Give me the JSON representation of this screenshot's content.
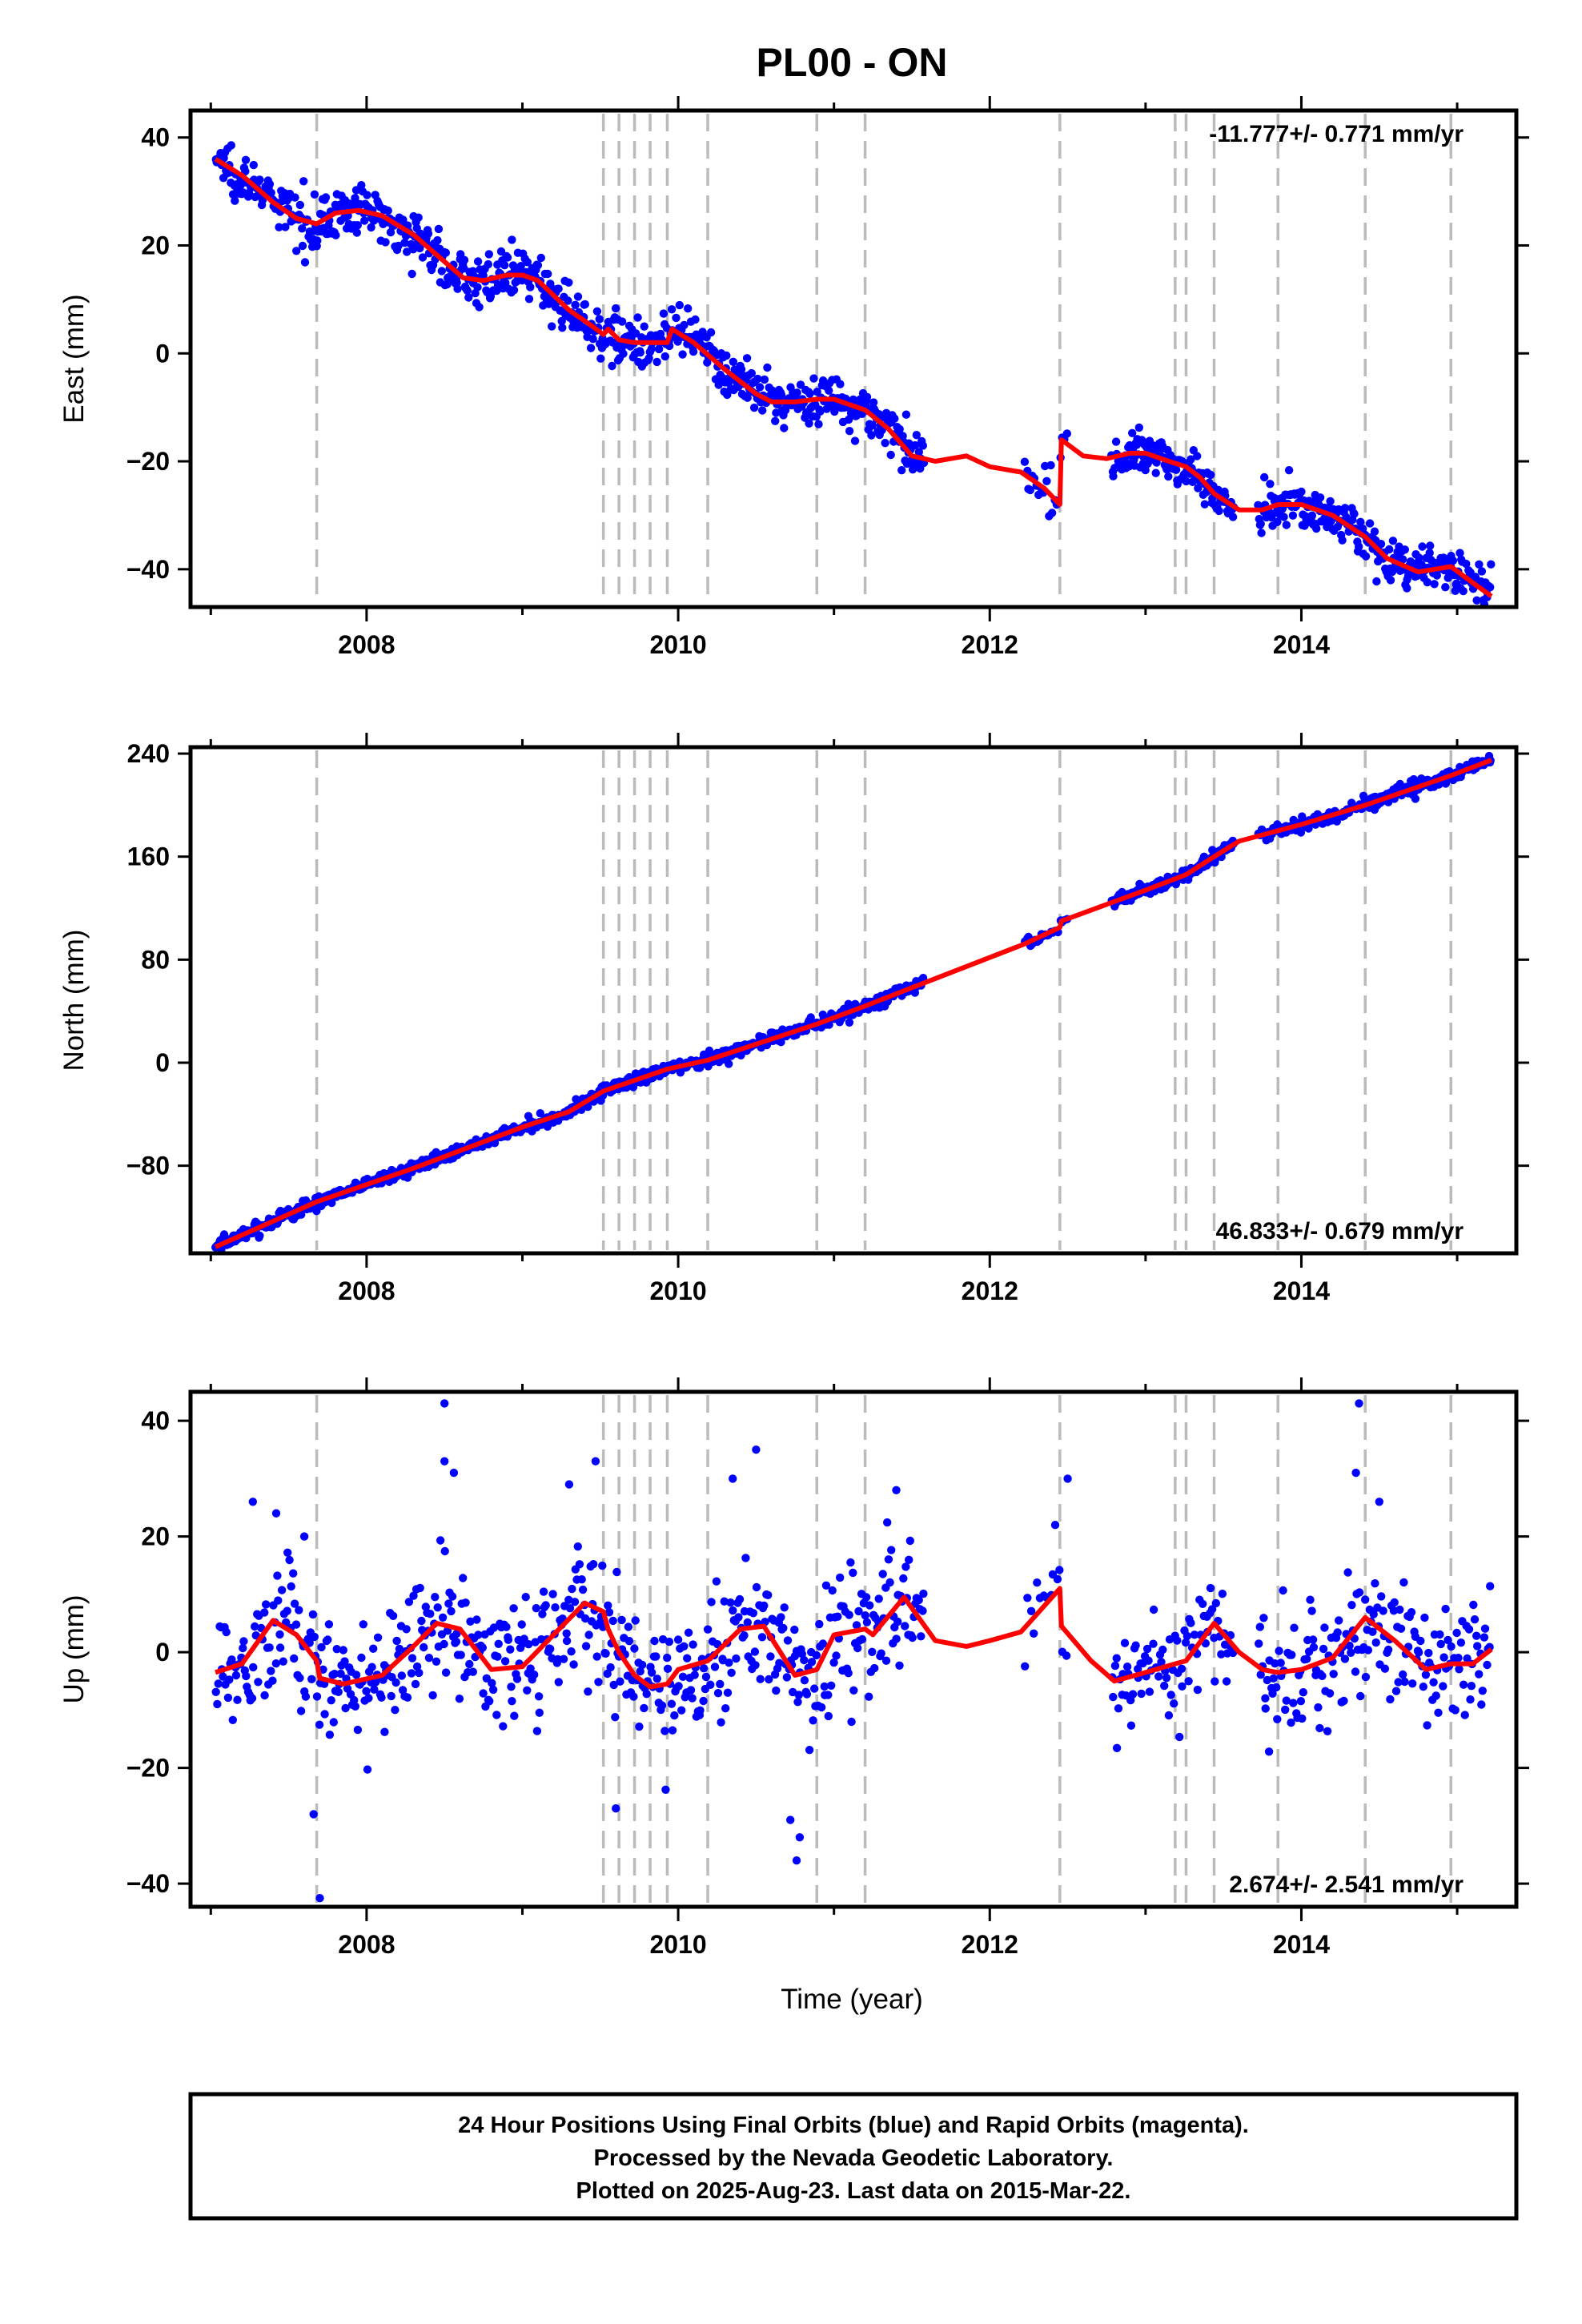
{
  "title": "PL00 - ON",
  "x_axis_label": "Time (year)",
  "x_ticks": [
    "2008",
    "2010",
    "2012",
    "2014"
  ],
  "footer": {
    "line1": "24 Hour Positions Using Final Orbits (blue) and Rapid Orbits (magenta).",
    "line2": "Processed by the Nevada Geodetic Laboratory.",
    "line3": "Plotted on 2025-Aug-23. Last data on 2015-Mar-22."
  },
  "colors": {
    "final_orbits": "#0000ff",
    "model_fit": "#ff0000",
    "event_lines": "#bbbbbb",
    "frame": "#000000"
  },
  "chart_data": [
    {
      "type": "scatter",
      "panel": "east",
      "ylabel": "East (mm)",
      "xlim": [
        2006.87,
        2015.38
      ],
      "ylim": [
        -47,
        45
      ],
      "y_ticks": [
        "40",
        "20",
        "0",
        "−20",
        "−40"
      ],
      "y_tick_values": [
        40,
        20,
        0,
        -20,
        -40
      ],
      "x_tick_values": [
        2008,
        2010,
        2012,
        2014
      ],
      "rate_label": "-11.777+/- 0.771 mm/yr",
      "rate_position": "top-right",
      "grid": false,
      "event_lines": [
        2007.68,
        2009.52,
        2009.62,
        2009.72,
        2009.82,
        2009.93,
        2010.19,
        2010.89,
        2011.2,
        2012.45,
        2013.19,
        2013.26,
        2013.44,
        2013.85,
        2014.41,
        2014.96
      ],
      "segments": [
        {
          "x0": 2007.03,
          "x1": 2011.58,
          "density": 170,
          "noise": 2.2
        },
        {
          "x0": 2012.22,
          "x1": 2012.5,
          "density": 80,
          "noise": 2.0
        },
        {
          "x0": 2012.78,
          "x1": 2013.57,
          "density": 170,
          "noise": 1.8
        },
        {
          "x0": 2013.72,
          "x1": 2015.22,
          "density": 170,
          "noise": 2.0
        }
      ],
      "series": [
        {
          "kind": "model",
          "x": [
            2007.03,
            2007.2,
            2007.4,
            2007.55,
            2007.68,
            2007.8,
            2007.95,
            2008.1,
            2008.3,
            2008.5,
            2008.62,
            2008.75,
            2008.9,
            2009.0,
            2009.1,
            2009.3,
            2009.45,
            2009.52,
            2009.55,
            2009.62,
            2009.72,
            2009.82,
            2009.93,
            2009.96,
            2010.1,
            2010.3,
            2010.5,
            2010.6,
            2010.75,
            2010.89,
            2011.0,
            2011.2,
            2011.35,
            2011.5,
            2011.65,
            2011.85,
            2012.0,
            2012.2,
            2012.35,
            2012.45,
            2012.46,
            2012.6,
            2012.75,
            2012.9,
            2013.0,
            2013.15,
            2013.26,
            2013.35,
            2013.44,
            2013.6,
            2013.75,
            2013.85,
            2014.0,
            2014.2,
            2014.41,
            2014.55,
            2014.75,
            2014.96,
            2015.1,
            2015.22
          ],
          "y": [
            36,
            33,
            28,
            25,
            24,
            26,
            26.5,
            25.5,
            22,
            17,
            14,
            13.5,
            14.5,
            14.5,
            13.5,
            8,
            5,
            3.5,
            4.5,
            2.5,
            2,
            2,
            2,
            4.5,
            2,
            -3,
            -7.5,
            -9,
            -9,
            -8.5,
            -8.5,
            -10.5,
            -14,
            -19,
            -20,
            -19,
            -21,
            -22,
            -25,
            -28,
            -16,
            -19,
            -19.5,
            -18.5,
            -18.5,
            -20,
            -21,
            -23,
            -26,
            -29,
            -29,
            -28,
            -28,
            -30,
            -34,
            -38,
            -40.5,
            -39.5,
            -42.5,
            -45
          ]
        }
      ]
    },
    {
      "type": "scatter",
      "panel": "north",
      "ylabel": "North (mm)",
      "xlim": [
        2006.87,
        2015.38
      ],
      "ylim": [
        -148,
        245
      ],
      "y_ticks": [
        "240",
        "160",
        "80",
        "0",
        "−80"
      ],
      "y_tick_values": [
        240,
        160,
        80,
        0,
        -80
      ],
      "x_tick_values": [
        2008,
        2010,
        2012,
        2014
      ],
      "rate_label": "46.833+/- 0.679 mm/yr",
      "rate_position": "bottom-right",
      "grid": false,
      "event_lines": [
        2007.68,
        2009.52,
        2009.62,
        2009.72,
        2009.82,
        2009.93,
        2010.19,
        2010.89,
        2011.2,
        2012.45,
        2013.19,
        2013.26,
        2013.44,
        2013.85,
        2014.41,
        2014.96
      ],
      "segments": [
        {
          "x0": 2007.03,
          "x1": 2011.58,
          "density": 170,
          "noise": 2.6
        },
        {
          "x0": 2012.22,
          "x1": 2012.5,
          "density": 80,
          "noise": 2.2
        },
        {
          "x0": 2012.78,
          "x1": 2013.57,
          "density": 170,
          "noise": 2.4
        },
        {
          "x0": 2013.72,
          "x1": 2015.22,
          "density": 170,
          "noise": 2.6
        }
      ],
      "series": [
        {
          "kind": "model",
          "x": [
            2007.03,
            2007.68,
            2008.3,
            2009.0,
            2009.3,
            2009.52,
            2009.93,
            2010.19,
            2010.89,
            2011.2,
            2011.58,
            2012.22,
            2012.45,
            2012.46,
            2013.0,
            2013.26,
            2013.44,
            2013.6,
            2014.0,
            2014.41,
            2014.96,
            2015.22
          ],
          "y": [
            -143,
            -108,
            -82,
            -50,
            -38,
            -22,
            -5,
            2,
            30,
            44,
            62,
            92,
            105,
            110,
            134,
            146,
            160,
            172,
            185,
            200,
            223,
            235
          ]
        }
      ]
    },
    {
      "type": "scatter",
      "panel": "up",
      "ylabel": "Up (mm)",
      "xlim": [
        2006.87,
        2015.38
      ],
      "ylim": [
        -44,
        45
      ],
      "y_ticks": [
        "40",
        "20",
        "0",
        "−20",
        "−40"
      ],
      "y_tick_values": [
        40,
        20,
        0,
        -20,
        -40
      ],
      "x_tick_values": [
        2008,
        2010,
        2012,
        2014
      ],
      "rate_label": "2.674+/- 2.541 mm/yr",
      "rate_position": "bottom-right",
      "grid": false,
      "event_lines": [
        2007.68,
        2009.52,
        2009.62,
        2009.72,
        2009.82,
        2009.93,
        2010.19,
        2010.89,
        2011.2,
        2012.45,
        2013.19,
        2013.26,
        2013.44,
        2013.85,
        2014.41,
        2014.96
      ],
      "segments": [
        {
          "x0": 2007.03,
          "x1": 2011.58,
          "density": 130,
          "noise": 5.5
        },
        {
          "x0": 2012.22,
          "x1": 2012.5,
          "density": 50,
          "noise": 5.0
        },
        {
          "x0": 2012.78,
          "x1": 2013.57,
          "density": 110,
          "noise": 4.5
        },
        {
          "x0": 2013.72,
          "x1": 2015.22,
          "density": 120,
          "noise": 5.5
        }
      ],
      "outliers": [
        {
          "x": 2007.27,
          "y": 26
        },
        {
          "x": 2007.42,
          "y": 24
        },
        {
          "x": 2007.6,
          "y": 20
        },
        {
          "x": 2007.66,
          "y": -28
        },
        {
          "x": 2007.7,
          "y": -42.5
        },
        {
          "x": 2008.5,
          "y": 43
        },
        {
          "x": 2008.5,
          "y": 33
        },
        {
          "x": 2008.56,
          "y": 31
        },
        {
          "x": 2009.3,
          "y": 29
        },
        {
          "x": 2009.47,
          "y": 33
        },
        {
          "x": 2009.6,
          "y": -27
        },
        {
          "x": 2010.35,
          "y": 30
        },
        {
          "x": 2010.5,
          "y": 35
        },
        {
          "x": 2010.72,
          "y": -29
        },
        {
          "x": 2010.76,
          "y": -36
        },
        {
          "x": 2010.78,
          "y": -32
        },
        {
          "x": 2011.4,
          "y": 28
        },
        {
          "x": 2012.42,
          "y": 22
        },
        {
          "x": 2012.5,
          "y": 30
        },
        {
          "x": 2014.37,
          "y": 43
        },
        {
          "x": 2014.35,
          "y": 31
        },
        {
          "x": 2014.5,
          "y": 26
        }
      ],
      "series": [
        {
          "kind": "model",
          "x": [
            2007.03,
            2007.2,
            2007.4,
            2007.55,
            2007.68,
            2007.7,
            2007.85,
            2008.1,
            2008.3,
            2008.45,
            2008.6,
            2008.8,
            2009.0,
            2009.2,
            2009.4,
            2009.52,
            2009.55,
            2009.62,
            2009.72,
            2009.82,
            2009.93,
            2010.0,
            2010.19,
            2010.4,
            2010.55,
            2010.75,
            2010.89,
            2011.0,
            2011.2,
            2011.25,
            2011.45,
            2011.65,
            2011.85,
            2012.0,
            2012.2,
            2012.45,
            2012.46,
            2012.65,
            2012.8,
            2013.0,
            2013.19,
            2013.26,
            2013.44,
            2013.6,
            2013.75,
            2013.85,
            2014.0,
            2014.2,
            2014.41,
            2014.6,
            2014.8,
            2014.96,
            2015.1,
            2015.22
          ],
          "y": [
            -3.5,
            -2,
            5.5,
            3,
            -1.5,
            -4.5,
            -5.5,
            -4,
            1,
            5,
            4,
            -3,
            -2.5,
            3,
            8.5,
            7,
            4,
            0,
            -4,
            -6,
            -5.5,
            -3,
            -1.5,
            4,
            4.5,
            -4,
            -3,
            3,
            4,
            3,
            9.5,
            2,
            1,
            2,
            3.5,
            11,
            4.5,
            -1.5,
            -5,
            -3.5,
            -2,
            -1.5,
            5,
            0,
            -3,
            -3.5,
            -3,
            -1,
            6,
            2,
            -3,
            -2,
            -2,
            0.5
          ]
        }
      ]
    }
  ]
}
